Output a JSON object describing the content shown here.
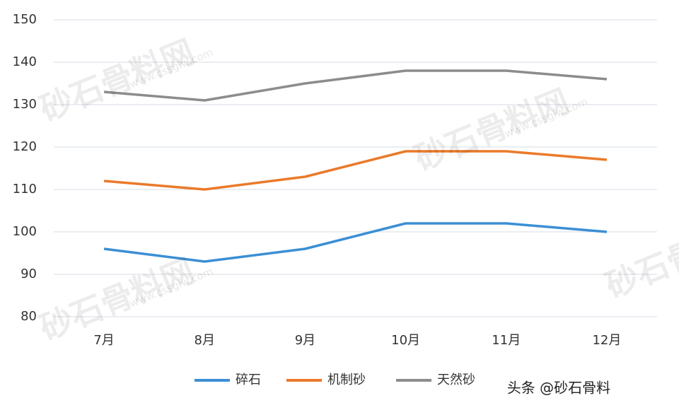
{
  "chart_data": {
    "type": "line",
    "categories": [
      "7月",
      "8月",
      "9月",
      "10月",
      "11月",
      "12月"
    ],
    "series": [
      {
        "name": "碎石",
        "color": "#3b8fd4",
        "values": [
          96,
          93,
          96,
          102,
          102,
          100
        ]
      },
      {
        "name": "机制砂",
        "color": "#ea7a2a",
        "values": [
          112,
          110,
          113,
          119,
          119,
          117
        ]
      },
      {
        "name": "天然砂",
        "color": "#8c8c8c",
        "values": [
          133,
          131,
          135,
          138,
          138,
          136
        ]
      }
    ],
    "ylim": [
      80,
      150
    ],
    "yticks": [
      80,
      90,
      100,
      110,
      120,
      130,
      140,
      150
    ],
    "grid": true,
    "legend": "bottom",
    "watermark": "砂石骨料网",
    "watermark_url": "www.cssglw.com",
    "credit": "头条 @砂石骨料"
  }
}
